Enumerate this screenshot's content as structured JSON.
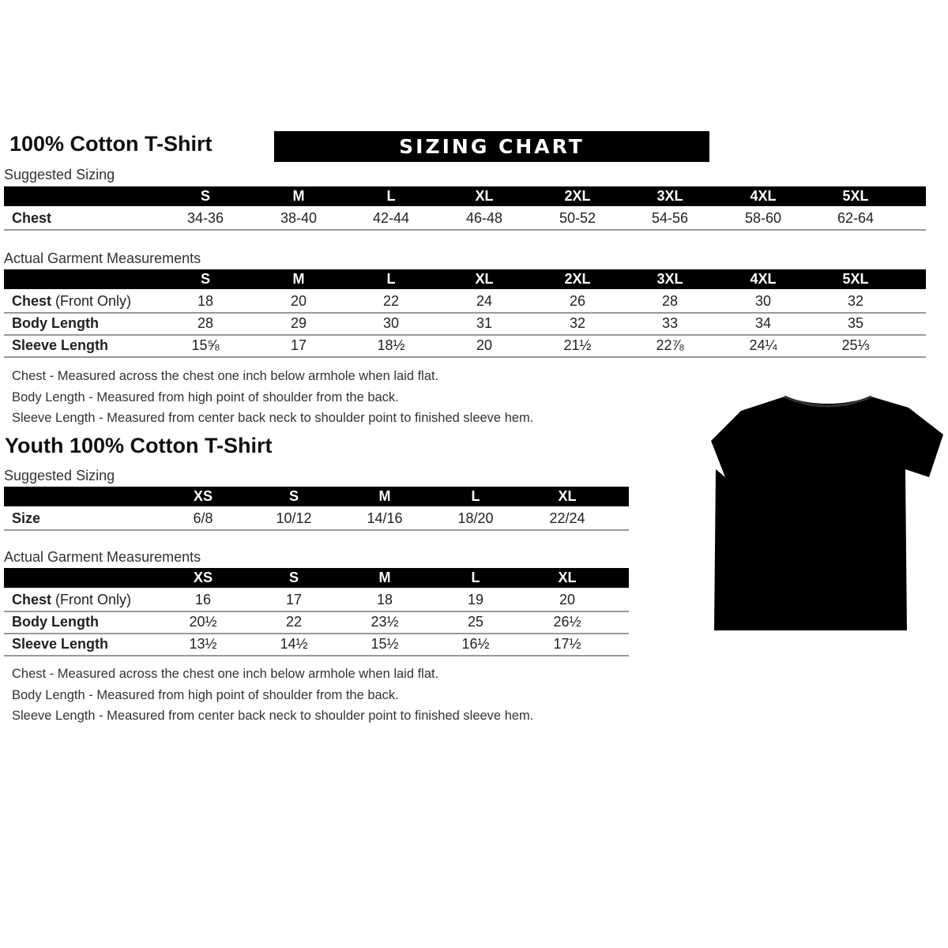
{
  "adult": {
    "title": "100% Cotton T-Shirt",
    "banner": "SIZING CHART",
    "suggested_label": "Suggested Sizing",
    "sizes": [
      "S",
      "M",
      "L",
      "XL",
      "2XL",
      "3XL",
      "4XL",
      "5XL"
    ],
    "suggested_rows": [
      {
        "label": "Chest",
        "label_extra": "",
        "values": [
          "34-36",
          "38-40",
          "42-44",
          "46-48",
          "50-52",
          "54-56",
          "58-60",
          "62-64"
        ]
      }
    ],
    "actual_label": "Actual Garment Measurements",
    "actual_rows": [
      {
        "label": "Chest",
        "label_extra": " (Front Only)",
        "values": [
          "18",
          "20",
          "22",
          "24",
          "26",
          "28",
          "30",
          "32"
        ]
      },
      {
        "label": "Body Length",
        "label_extra": "",
        "values": [
          "28",
          "29",
          "30",
          "31",
          "32",
          "33",
          "34",
          "35"
        ]
      },
      {
        "label": "Sleeve Length",
        "label_extra": "",
        "values": [
          "15⅝",
          "17",
          "18½",
          "20",
          "21½",
          "22⅞",
          "24¼",
          "25⅓"
        ]
      }
    ],
    "notes": [
      "Chest - Measured across the chest one inch below armhole when laid flat.",
      "Body Length - Measured from high point of shoulder from the back.",
      "Sleeve Length - Measured from center back neck to shoulder point to finished sleeve hem."
    ]
  },
  "youth": {
    "title": "Youth 100% Cotton T-Shirt",
    "suggested_label": "Suggested Sizing",
    "sizes": [
      "XS",
      "S",
      "M",
      "L",
      "XL"
    ],
    "suggested_rows": [
      {
        "label": "Size",
        "label_extra": "",
        "values": [
          "6/8",
          "10/12",
          "14/16",
          "18/20",
          "22/24"
        ]
      }
    ],
    "actual_label": "Actual Garment Measurements",
    "actual_rows": [
      {
        "label": "Chest",
        "label_extra": " (Front Only)",
        "values": [
          "16",
          "17",
          "18",
          "19",
          "20"
        ]
      },
      {
        "label": "Body Length",
        "label_extra": "",
        "values": [
          "20½",
          "22",
          "23½",
          "25",
          "26½"
        ]
      },
      {
        "label": "Sleeve Length",
        "label_extra": "",
        "values": [
          "13½",
          "14½",
          "15½",
          "16½",
          "17½"
        ]
      }
    ],
    "notes": [
      "Chest - Measured across the chest one inch below armhole when laid flat.",
      "Body Length - Measured from high point of shoulder from the back.",
      "Sleeve Length - Measured from center back neck to shoulder point to finished sleeve hem."
    ]
  },
  "shirt_color": "#000000"
}
